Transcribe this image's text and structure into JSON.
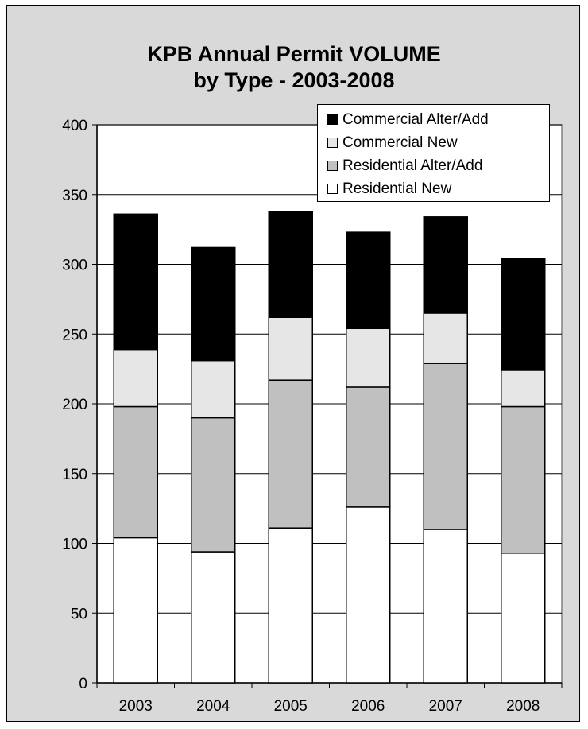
{
  "chart_data": {
    "type": "bar",
    "stacked": true,
    "title_lines": [
      "KPB Annual Permit VOLUME",
      "by Type - 2003-2008"
    ],
    "categories": [
      "2003",
      "2004",
      "2005",
      "2006",
      "2007",
      "2008"
    ],
    "series": [
      {
        "name": "Residential New",
        "color": "#ffffff",
        "values": [
          104,
          94,
          111,
          126,
          110,
          93
        ]
      },
      {
        "name": "Residential Alter/Add",
        "color": "#c0c0c0",
        "values": [
          94,
          96,
          106,
          86,
          119,
          105
        ]
      },
      {
        "name": "Commercial New",
        "color": "#e6e6e6",
        "values": [
          41,
          41,
          45,
          42,
          36,
          26
        ]
      },
      {
        "name": "Commercial Alter/Add",
        "color": "#000000",
        "values": [
          97,
          81,
          76,
          69,
          69,
          80
        ]
      }
    ],
    "legend_order": [
      "Commercial Alter/Add",
      "Commercial New",
      "Residential Alter/Add",
      "Residential New"
    ],
    "ylim": [
      0,
      400
    ],
    "yticks": [
      0,
      50,
      100,
      150,
      200,
      250,
      300,
      350,
      400
    ],
    "ytick_labels": [
      "0",
      "50",
      "100",
      "150",
      "200",
      "250",
      "300",
      "350",
      "400"
    ],
    "xlabel": "",
    "ylabel": "",
    "grid": true,
    "legend_position": "top-right",
    "plot_background": "#ffffff",
    "chart_background": "#d9d9d9"
  }
}
